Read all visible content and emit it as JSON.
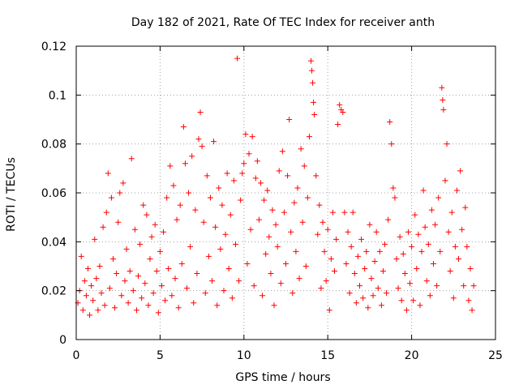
{
  "chart_data": {
    "type": "scatter",
    "title": "Day 182 of 2021, Rate Of TEC Index for receiver anth",
    "xlabel": "GPS time / hours",
    "ylabel": "ROTI / TECUs",
    "xlim": [
      0,
      25
    ],
    "ylim": [
      0,
      0.12
    ],
    "xticks": [
      0,
      5,
      10,
      15,
      20,
      25
    ],
    "xtick_labels": [
      "0",
      "5",
      "10",
      "15",
      "20",
      "25"
    ],
    "yticks": [
      0,
      0.02,
      0.04,
      0.06,
      0.08,
      0.1,
      0.12
    ],
    "ytick_labels": [
      "0",
      "0.02",
      "0.04",
      "0.06",
      "0.08",
      "0.1",
      "0.12"
    ],
    "grid": true,
    "legend": "none",
    "marker": "plus",
    "series": [
      {
        "color": "#ff0000",
        "points": [
          [
            0.1,
            0.015
          ],
          [
            0.2,
            0.02
          ],
          [
            0.3,
            0.034
          ],
          [
            0.4,
            0.012
          ],
          [
            0.5,
            0.024
          ],
          [
            0.6,
            0.018
          ],
          [
            0.7,
            0.029
          ],
          [
            0.8,
            0.01
          ],
          [
            0.9,
            0.022
          ],
          [
            1.0,
            0.016
          ],
          [
            1.1,
            0.041
          ],
          [
            1.2,
            0.025
          ],
          [
            1.3,
            0.012
          ],
          [
            1.4,
            0.03
          ],
          [
            1.5,
            0.019
          ],
          [
            1.6,
            0.046
          ],
          [
            1.7,
            0.014
          ],
          [
            1.8,
            0.052
          ],
          [
            1.9,
            0.068
          ],
          [
            2.0,
            0.021
          ],
          [
            2.1,
            0.058
          ],
          [
            2.2,
            0.033
          ],
          [
            2.3,
            0.013
          ],
          [
            2.4,
            0.027
          ],
          [
            2.5,
            0.048
          ],
          [
            2.6,
            0.06
          ],
          [
            2.7,
            0.018
          ],
          [
            2.8,
            0.064
          ],
          [
            2.9,
            0.024
          ],
          [
            3.0,
            0.037
          ],
          [
            3.1,
            0.015
          ],
          [
            3.2,
            0.028
          ],
          [
            3.3,
            0.074
          ],
          [
            3.4,
            0.02
          ],
          [
            3.5,
            0.045
          ],
          [
            3.6,
            0.012
          ],
          [
            3.7,
            0.026
          ],
          [
            3.8,
            0.039
          ],
          [
            3.9,
            0.017
          ],
          [
            4.0,
            0.055
          ],
          [
            4.1,
            0.023
          ],
          [
            4.2,
            0.051
          ],
          [
            4.3,
            0.014
          ],
          [
            4.4,
            0.033
          ],
          [
            4.5,
            0.042
          ],
          [
            4.6,
            0.019
          ],
          [
            4.7,
            0.047
          ],
          [
            4.8,
            0.028
          ],
          [
            4.9,
            0.011
          ],
          [
            5.0,
            0.036
          ],
          [
            5.1,
            0.022
          ],
          [
            5.2,
            0.044
          ],
          [
            5.3,
            0.016
          ],
          [
            5.4,
            0.058
          ],
          [
            5.5,
            0.029
          ],
          [
            5.6,
            0.071
          ],
          [
            5.7,
            0.018
          ],
          [
            5.8,
            0.063
          ],
          [
            5.9,
            0.025
          ],
          [
            6.0,
            0.049
          ],
          [
            6.1,
            0.013
          ],
          [
            6.2,
            0.055
          ],
          [
            6.3,
            0.031
          ],
          [
            6.4,
            0.087
          ],
          [
            6.5,
            0.072
          ],
          [
            6.6,
            0.021
          ],
          [
            6.7,
            0.06
          ],
          [
            6.8,
            0.038
          ],
          [
            6.9,
            0.075
          ],
          [
            7.0,
            0.015
          ],
          [
            7.1,
            0.053
          ],
          [
            7.2,
            0.027
          ],
          [
            7.3,
            0.082
          ],
          [
            7.4,
            0.093
          ],
          [
            7.5,
            0.079
          ],
          [
            7.6,
            0.048
          ],
          [
            7.7,
            0.019
          ],
          [
            7.8,
            0.067
          ],
          [
            7.9,
            0.034
          ],
          [
            8.0,
            0.058
          ],
          [
            8.1,
            0.024
          ],
          [
            8.2,
            0.081
          ],
          [
            8.3,
            0.046
          ],
          [
            8.4,
            0.014
          ],
          [
            8.5,
            0.062
          ],
          [
            8.6,
            0.037
          ],
          [
            8.7,
            0.055
          ],
          [
            8.8,
            0.02
          ],
          [
            8.9,
            0.043
          ],
          [
            9.0,
            0.068
          ],
          [
            9.1,
            0.029
          ],
          [
            9.2,
            0.051
          ],
          [
            9.3,
            0.017
          ],
          [
            9.4,
            0.065
          ],
          [
            9.5,
            0.039
          ],
          [
            9.6,
            0.115
          ],
          [
            9.7,
            0.024
          ],
          [
            9.8,
            0.057
          ],
          [
            9.9,
            0.068
          ],
          [
            10.0,
            0.072
          ],
          [
            10.1,
            0.084
          ],
          [
            10.2,
            0.031
          ],
          [
            10.3,
            0.076
          ],
          [
            10.4,
            0.045
          ],
          [
            10.5,
            0.083
          ],
          [
            10.6,
            0.022
          ],
          [
            10.7,
            0.066
          ],
          [
            10.8,
            0.073
          ],
          [
            10.9,
            0.049
          ],
          [
            11.0,
            0.064
          ],
          [
            11.1,
            0.018
          ],
          [
            11.2,
            0.057
          ],
          [
            11.3,
            0.035
          ],
          [
            11.4,
            0.061
          ],
          [
            11.5,
            0.042
          ],
          [
            11.6,
            0.027
          ],
          [
            11.7,
            0.053
          ],
          [
            11.8,
            0.014
          ],
          [
            11.9,
            0.047
          ],
          [
            12.0,
            0.038
          ],
          [
            12.1,
            0.069
          ],
          [
            12.2,
            0.023
          ],
          [
            12.3,
            0.077
          ],
          [
            12.4,
            0.052
          ],
          [
            12.5,
            0.031
          ],
          [
            12.6,
            0.067
          ],
          [
            12.7,
            0.09
          ],
          [
            12.8,
            0.044
          ],
          [
            12.9,
            0.019
          ],
          [
            13.0,
            0.056
          ],
          [
            13.1,
            0.036
          ],
          [
            13.2,
            0.062
          ],
          [
            13.3,
            0.025
          ],
          [
            13.4,
            0.078
          ],
          [
            13.5,
            0.048
          ],
          [
            13.6,
            0.071
          ],
          [
            13.7,
            0.03
          ],
          [
            13.8,
            0.058
          ],
          [
            13.9,
            0.083
          ],
          [
            14.0,
            0.114
          ],
          [
            14.05,
            0.11
          ],
          [
            14.1,
            0.105
          ],
          [
            14.15,
            0.097
          ],
          [
            14.2,
            0.092
          ],
          [
            14.3,
            0.067
          ],
          [
            14.4,
            0.043
          ],
          [
            14.5,
            0.055
          ],
          [
            14.6,
            0.021
          ],
          [
            14.7,
            0.048
          ],
          [
            14.8,
            0.036
          ],
          [
            14.9,
            0.024
          ],
          [
            15.0,
            0.045
          ],
          [
            15.1,
            0.012
          ],
          [
            15.2,
            0.033
          ],
          [
            15.3,
            0.052
          ],
          [
            15.4,
            0.028
          ],
          [
            15.5,
            0.041
          ],
          [
            15.6,
            0.088
          ],
          [
            15.7,
            0.096
          ],
          [
            15.8,
            0.094
          ],
          [
            15.9,
            0.093
          ],
          [
            16.0,
            0.052
          ],
          [
            16.1,
            0.031
          ],
          [
            16.2,
            0.044
          ],
          [
            16.3,
            0.019
          ],
          [
            16.4,
            0.038
          ],
          [
            16.5,
            0.052
          ],
          [
            16.6,
            0.027
          ],
          [
            16.7,
            0.015
          ],
          [
            16.8,
            0.034
          ],
          [
            16.9,
            0.022
          ],
          [
            17.0,
            0.041
          ],
          [
            17.1,
            0.017
          ],
          [
            17.2,
            0.029
          ],
          [
            17.3,
            0.036
          ],
          [
            17.4,
            0.013
          ],
          [
            17.5,
            0.047
          ],
          [
            17.6,
            0.025
          ],
          [
            17.7,
            0.018
          ],
          [
            17.8,
            0.032
          ],
          [
            17.9,
            0.044
          ],
          [
            18.0,
            0.021
          ],
          [
            18.1,
            0.036
          ],
          [
            18.2,
            0.014
          ],
          [
            18.3,
            0.028
          ],
          [
            18.4,
            0.039
          ],
          [
            18.5,
            0.019
          ],
          [
            18.6,
            0.049
          ],
          [
            18.7,
            0.089
          ],
          [
            18.8,
            0.08
          ],
          [
            18.9,
            0.062
          ],
          [
            19.0,
            0.058
          ],
          [
            19.1,
            0.033
          ],
          [
            19.2,
            0.021
          ],
          [
            19.3,
            0.042
          ],
          [
            19.4,
            0.016
          ],
          [
            19.5,
            0.035
          ],
          [
            19.6,
            0.027
          ],
          [
            19.7,
            0.012
          ],
          [
            19.8,
            0.044
          ],
          [
            19.9,
            0.023
          ],
          [
            20.0,
            0.038
          ],
          [
            20.1,
            0.016
          ],
          [
            20.2,
            0.051
          ],
          [
            20.3,
            0.029
          ],
          [
            20.4,
            0.043
          ],
          [
            20.5,
            0.014
          ],
          [
            20.6,
            0.036
          ],
          [
            20.7,
            0.061
          ],
          [
            20.8,
            0.046
          ],
          [
            20.9,
            0.024
          ],
          [
            21.0,
            0.039
          ],
          [
            21.1,
            0.018
          ],
          [
            21.2,
            0.053
          ],
          [
            21.3,
            0.031
          ],
          [
            21.4,
            0.047
          ],
          [
            21.5,
            0.022
          ],
          [
            21.6,
            0.058
          ],
          [
            21.7,
            0.036
          ],
          [
            21.8,
            0.103
          ],
          [
            21.85,
            0.098
          ],
          [
            21.9,
            0.094
          ],
          [
            22.0,
            0.065
          ],
          [
            22.1,
            0.08
          ],
          [
            22.2,
            0.044
          ],
          [
            22.3,
            0.028
          ],
          [
            22.4,
            0.052
          ],
          [
            22.5,
            0.017
          ],
          [
            22.6,
            0.038
          ],
          [
            22.7,
            0.061
          ],
          [
            22.8,
            0.033
          ],
          [
            22.9,
            0.069
          ],
          [
            23.0,
            0.045
          ],
          [
            23.1,
            0.022
          ],
          [
            23.2,
            0.054
          ],
          [
            23.3,
            0.038
          ],
          [
            23.4,
            0.016
          ],
          [
            23.5,
            0.029
          ],
          [
            23.6,
            0.012
          ],
          [
            23.7,
            0.022
          ]
        ]
      }
    ]
  }
}
